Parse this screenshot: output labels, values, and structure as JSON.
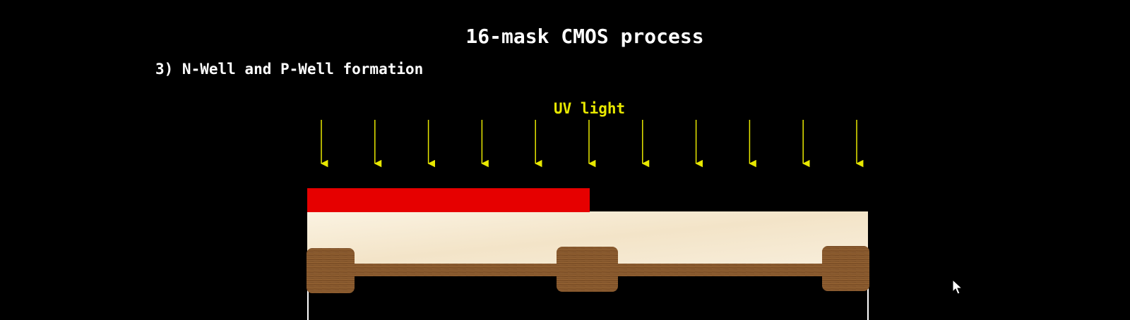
{
  "slide": {
    "title": "16-mask CMOS process",
    "step_heading": "3) N-Well and P-Well formation"
  },
  "diagram": {
    "uv_label": "UV light",
    "uv_arrow_count": 11,
    "layers": [
      {
        "name": "photoresist",
        "color": "#e60000"
      },
      {
        "name": "oxide",
        "color": "#f6ecd6"
      },
      {
        "name": "field-oxide",
        "color": "#8a5a2e"
      },
      {
        "name": "substrate-outline",
        "color": "#ffffff"
      }
    ],
    "colors": {
      "background": "#000000",
      "uv": "#e8e800",
      "text": "#ffffff"
    }
  }
}
